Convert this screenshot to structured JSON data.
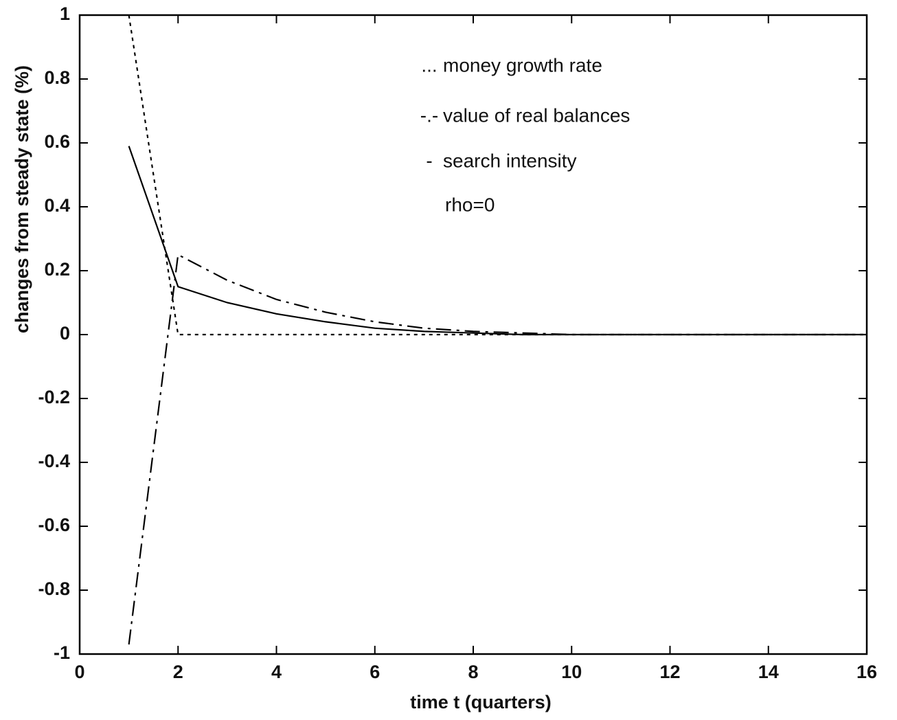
{
  "chart_data": {
    "type": "line",
    "xlabel": "time t (quarters)",
    "ylabel": "changes from steady state (%)",
    "x": [
      1,
      2,
      3,
      4,
      5,
      6,
      7,
      8,
      9,
      10,
      11,
      12,
      13,
      14,
      15,
      16
    ],
    "series": [
      {
        "name": "money growth rate",
        "marker": "...",
        "color": "#000000",
        "dash": "dotted",
        "values": [
          1.0,
          0,
          0,
          0,
          0,
          0,
          0,
          0,
          0,
          0,
          0,
          0,
          0,
          0,
          0,
          0
        ]
      },
      {
        "name": "value of real balances",
        "marker": "-.-",
        "color": "#000000",
        "dash": "dashdot",
        "values": [
          -0.97,
          0.25,
          0.17,
          0.11,
          0.07,
          0.04,
          0.02,
          0.01,
          0.005,
          0,
          0,
          0,
          0,
          0,
          0,
          0
        ]
      },
      {
        "name": "search intensity",
        "marker": "-",
        "color": "#000000",
        "dash": "solid",
        "values": [
          0.59,
          0.15,
          0.1,
          0.065,
          0.04,
          0.02,
          0.01,
          0.005,
          0,
          0,
          0,
          0,
          0,
          0,
          0,
          0
        ]
      }
    ],
    "annotation": "rho=0",
    "xlim": [
      0,
      16
    ],
    "ylim": [
      -1,
      1
    ],
    "xticks": [
      0,
      2,
      4,
      6,
      8,
      10,
      12,
      14,
      16
    ],
    "yticks": [
      -1,
      -0.8,
      -0.6,
      -0.4,
      -0.2,
      0,
      0.2,
      0.4,
      0.6,
      0.8,
      1
    ],
    "grid": false
  }
}
